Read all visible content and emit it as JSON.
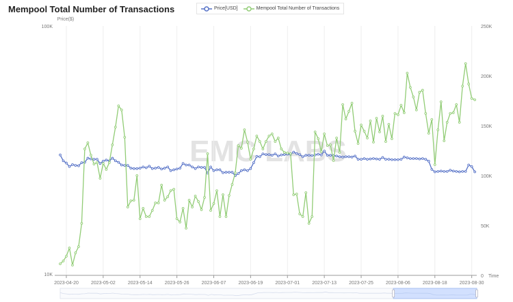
{
  "title": "Mempool Total Number of Transactions",
  "watermark": "EMC LABS",
  "legend": [
    {
      "label": "Price[USD]",
      "color": "#5470c6"
    },
    {
      "label": "Mempool Total Number of Transactions",
      "color": "#91cc75"
    }
  ],
  "chart_data": {
    "type": "line",
    "start_date": "2023-04-18",
    "x_ticks": [
      "2023-04-20",
      "2023-05-02",
      "2023-05-14",
      "2023-05-26",
      "2023-06-07",
      "2023-06-19",
      "2023-07-01",
      "2023-07-13",
      "2023-07-25",
      "2023-08-06",
      "2023-08-18",
      "2023-08-30"
    ],
    "xlabel": "Time",
    "left_axis": {
      "label": "Price($)",
      "scale": "log",
      "range": [
        10000,
        100000
      ],
      "ticks": [
        "10K",
        "100K"
      ]
    },
    "right_axis": {
      "scale": "linear",
      "range": [
        0,
        250000
      ],
      "ticks": [
        "0",
        "50K",
        "100K",
        "150K",
        "200K",
        "250K"
      ]
    },
    "grid": "vertical",
    "legend_position": "top-center",
    "series": [
      {
        "name": "Price[USD]",
        "axis": "left",
        "color": "#5470c6",
        "values": [
          30400,
          28800,
          28200,
          27300,
          27800,
          27600,
          27500,
          28300,
          28400,
          29500,
          29300,
          29200,
          29200,
          28100,
          28700,
          29000,
          28800,
          29500,
          28800,
          28400,
          27700,
          27600,
          27600,
          26900,
          26800,
          26800,
          26900,
          27200,
          27000,
          27400,
          26800,
          26900,
          27100,
          26700,
          26900,
          27200,
          26300,
          26500,
          26700,
          26900,
          28100,
          27700,
          27700,
          27200,
          26800,
          27200,
          27100,
          27100,
          25700,
          27200,
          26300,
          26500,
          26500,
          25800,
          25900,
          25900,
          25900,
          25100,
          25600,
          26300,
          26500,
          26300,
          26800,
          28300,
          30000,
          29900,
          30700,
          30500,
          30500,
          30300,
          30700,
          30100,
          30400,
          30500,
          30600,
          30600,
          31200,
          30800,
          30500,
          29900,
          30300,
          30300,
          30200,
          30400,
          30600,
          30400,
          31500,
          30300,
          30300,
          30200,
          30100,
          29900,
          29800,
          29900,
          29900,
          29800,
          30100,
          29200,
          29200,
          29400,
          29200,
          29300,
          29400,
          29300,
          29200,
          29700,
          29200,
          29200,
          29100,
          29100,
          29100,
          29200,
          29800,
          29600,
          29400,
          29400,
          29400,
          29300,
          29400,
          29200,
          28700,
          26600,
          26000,
          26100,
          26200,
          26100,
          26100,
          26400,
          26200,
          26100,
          26000,
          26100,
          26100,
          27700,
          27300,
          26000
        ]
      },
      {
        "name": "Mempool Total Number of Transactions",
        "axis": "right",
        "color": "#91cc75",
        "values": [
          11600,
          14400,
          19200,
          27400,
          10300,
          22600,
          28800,
          52100,
          126700,
          132900,
          120500,
          111600,
          113000,
          97300,
          112300,
          106200,
          113000,
          130800,
          148600,
          169900,
          165800,
          138400,
          68500,
          74700,
          75300,
          100000,
          56800,
          67100,
          58900,
          58900,
          65100,
          72600,
          72600,
          90400,
          75300,
          78800,
          84900,
          86300,
          56800,
          53400,
          67100,
          47300,
          75300,
          68500,
          79500,
          74000,
          65800,
          78100,
          121900,
          65100,
          71900,
          84900,
          58900,
          80800,
          58900,
          80100,
          91100,
          102700,
          130100,
          127400,
          145900,
          133600,
          116400,
          126700,
          139700,
          134200,
          126700,
          134200,
          139700,
          141800,
          134200,
          137700,
          126700,
          123300,
          122600,
          121900,
          80800,
          81500,
          61600,
          58900,
          82900,
          52100,
          58900,
          143800,
          137000,
          124000,
          141800,
          130100,
          130800,
          115100,
          137700,
          123300,
          171200,
          156800,
          164400,
          172600,
          144500,
          132200,
          150700,
          144500,
          137700,
          154800,
          133600,
          157500,
          143800,
          159600,
          134200,
          151400,
          137000,
          162300,
          161000,
          170500,
          163000,
          202700,
          188400,
          178800,
          165800,
          183600,
          185600,
          162300,
          142500,
          156200,
          111000,
          145900,
          174000,
          134900,
          153400,
          162300,
          163000,
          171200,
          153400,
          189700,
          212300,
          191800,
          177400,
          176000
        ]
      }
    ],
    "zoom_range_percent": [
      80,
      100
    ]
  }
}
